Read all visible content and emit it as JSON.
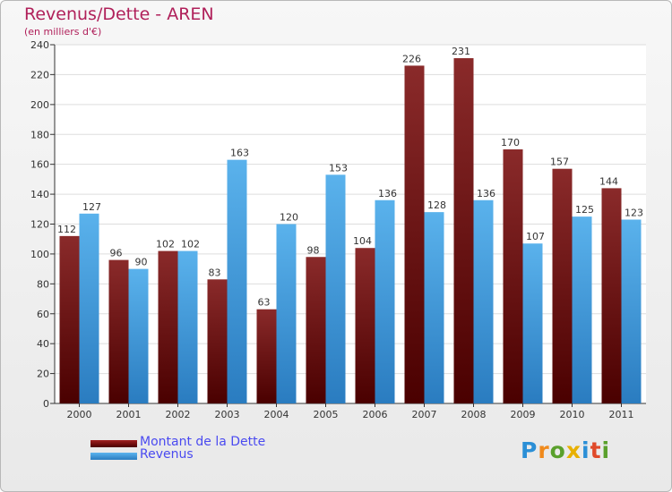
{
  "chart_data": {
    "type": "bar",
    "title": "Revenus/Dette - AREN",
    "subtitle": "(en milliers d'€)",
    "xlabel": "",
    "ylabel": "",
    "ylim": [
      0,
      240
    ],
    "yticks": [
      0,
      20,
      40,
      60,
      80,
      100,
      120,
      140,
      160,
      180,
      200,
      220,
      240
    ],
    "grid": true,
    "categories": [
      "2000",
      "2001",
      "2002",
      "2003",
      "2004",
      "2005",
      "2006",
      "2007",
      "2008",
      "2009",
      "2010",
      "2011"
    ],
    "series": [
      {
        "name": "Montant de la Dette",
        "color": "#7a1010",
        "values": [
          112,
          96,
          102,
          83,
          63,
          98,
          104,
          226,
          231,
          170,
          157,
          144
        ]
      },
      {
        "name": "Revenus",
        "color": "#3a98dc",
        "values": [
          127,
          90,
          102,
          163,
          120,
          153,
          136,
          128,
          136,
          107,
          125,
          123
        ]
      }
    ],
    "legend_position": "bottom-left"
  },
  "legend": {
    "debt_label": "Montant de la Dette",
    "revenue_label": "Revenus"
  },
  "logo": {
    "letters": [
      "P",
      "r",
      "o",
      "x",
      "i",
      "t",
      "i"
    ]
  },
  "colors": {
    "title": "#b0205a",
    "legend_text": "#4a4af0"
  }
}
